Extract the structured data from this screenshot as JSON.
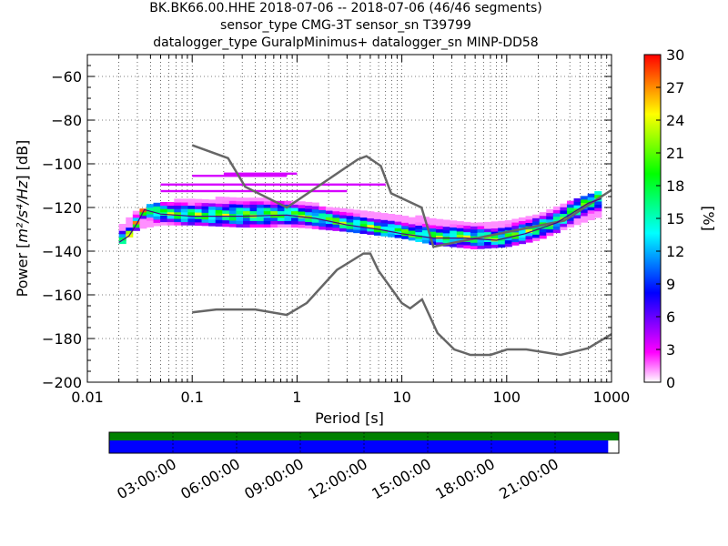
{
  "chart_data": [
    {
      "type": "heatmap",
      "title_lines": [
        "BK.BK66.00.HHE   2018-07-06 -- 2018-07-06  (46/46 segments)",
        "sensor_type CMG-3T sensor_sn T39799",
        "datalogger_type GuralpMinimus+ datalogger_sn MINP-DD58"
      ],
      "xlabel": "Period [s]",
      "ylabel_prefix": "Power [",
      "ylabel_unit": "m²/s⁴/Hz",
      "ylabel_suffix": "] [dB]",
      "xscale": "log",
      "xlim": [
        0.01,
        1000
      ],
      "ylim": [
        -200,
        -50
      ],
      "xtick_values": [
        0.01,
        0.1,
        1,
        10,
        100,
        1000
      ],
      "xtick_labels": [
        "0.01",
        "0.1",
        "1",
        "10",
        "100",
        "1000"
      ],
      "ytick_values": [
        -200,
        -180,
        -160,
        -140,
        -120,
        -100,
        -80,
        -60
      ],
      "ytick_labels": [
        "−200",
        "−180",
        "−160",
        "−140",
        "−120",
        "−100",
        "−80",
        "−60"
      ],
      "grid": true,
      "colorbar": {
        "label": "[%]",
        "range": [
          0,
          30
        ],
        "tick_values": [
          0,
          3,
          6,
          9,
          12,
          15,
          18,
          21,
          24,
          27,
          30
        ],
        "tick_labels": [
          "0",
          "3",
          "6",
          "9",
          "12",
          "15",
          "18",
          "21",
          "24",
          "27",
          "30"
        ],
        "colormap_stops": [
          "#ffffff",
          "#ff00ff",
          "#8000ff",
          "#0000ff",
          "#0080ff",
          "#00ffff",
          "#00ff80",
          "#00ff00",
          "#80ff00",
          "#ffff00",
          "#ff8000",
          "#ff0000"
        ]
      },
      "reference_curves": [
        {
          "name": "NHNM",
          "color": "#666666",
          "points": [
            [
              0.1,
              -91.5
            ],
            [
              0.22,
              -97.4
            ],
            [
              0.32,
              -110.5
            ],
            [
              0.8,
              -120
            ],
            [
              3.8,
              -98
            ],
            [
              4.6,
              -96.5
            ],
            [
              6.3,
              -101
            ],
            [
              7.9,
              -113.5
            ],
            [
              15.4,
              -120
            ],
            [
              20,
              -138
            ],
            [
              354.8,
              -126
            ],
            [
              1000,
              -112
            ]
          ]
        },
        {
          "name": "NLNM",
          "color": "#666666",
          "points": [
            [
              0.1,
              -168
            ],
            [
              0.17,
              -166.7
            ],
            [
              0.4,
              -166.7
            ],
            [
              0.8,
              -169.2
            ],
            [
              1.24,
              -163.7
            ],
            [
              2.4,
              -148.6
            ],
            [
              4.3,
              -141.1
            ],
            [
              5,
              -141.1
            ],
            [
              6,
              -149
            ],
            [
              10,
              -163.8
            ],
            [
              12,
              -166.2
            ],
            [
              15.6,
              -162.1
            ],
            [
              21.9,
              -177.5
            ],
            [
              31.6,
              -185
            ],
            [
              45,
              -187.5
            ],
            [
              70,
              -187.5
            ],
            [
              101,
              -185
            ],
            [
              154,
              -185
            ],
            [
              328,
              -187.5
            ],
            [
              600,
              -184.4
            ],
            [
              1000,
              -178
            ]
          ]
        }
      ],
      "mode_curve": {
        "name": "mode",
        "points": [
          [
            0.02,
            -136
          ],
          [
            0.025,
            -133
          ],
          [
            0.03,
            -127
          ],
          [
            0.035,
            -121
          ],
          [
            0.05,
            -123
          ],
          [
            0.1,
            -124
          ],
          [
            0.3,
            -124
          ],
          [
            0.8,
            -123.5
          ],
          [
            1.5,
            -125
          ],
          [
            3,
            -128
          ],
          [
            6,
            -130
          ],
          [
            10,
            -132
          ],
          [
            20,
            -134
          ],
          [
            40,
            -134
          ],
          [
            80,
            -135
          ],
          [
            150,
            -132
          ],
          [
            300,
            -127
          ],
          [
            600,
            -118
          ],
          [
            800,
            -116
          ]
        ]
      },
      "percentile_curves": [
        {
          "name": "upper",
          "points": [
            [
              0.02,
              -130
            ],
            [
              0.03,
              -122
            ],
            [
              0.05,
              -118
            ],
            [
              0.1,
              -117
            ],
            [
              0.3,
              -116
            ],
            [
              1,
              -118
            ],
            [
              3,
              -121
            ],
            [
              10,
              -124
            ],
            [
              20,
              -126
            ],
            [
              50,
              -128
            ],
            [
              100,
              -127
            ],
            [
              200,
              -124
            ],
            [
              400,
              -118
            ],
            [
              800,
              -112
            ]
          ]
        },
        {
          "name": "lower",
          "points": [
            [
              0.02,
              -138
            ],
            [
              0.03,
              -130
            ],
            [
              0.05,
              -128
            ],
            [
              0.1,
              -128
            ],
            [
              0.3,
              -129
            ],
            [
              1,
              -129
            ],
            [
              3,
              -131
            ],
            [
              10,
              -134
            ],
            [
              20,
              -137
            ],
            [
              50,
              -139
            ],
            [
              100,
              -138
            ],
            [
              200,
              -135
            ],
            [
              400,
              -129
            ],
            [
              800,
              -124
            ]
          ]
        }
      ],
      "outlier_segments": [
        {
          "x": [
            0.1,
            0.8
          ],
          "y": -106
        },
        {
          "x": [
            0.2,
            1.0
          ],
          "y": -105
        },
        {
          "x": [
            0.05,
            3
          ],
          "y": -113
        },
        {
          "x": [
            0.05,
            7
          ],
          "y": -110
        }
      ]
    },
    {
      "type": "timeline",
      "tick_labels": [
        "03:00:00",
        "06:00:00",
        "09:00:00",
        "12:00:00",
        "15:00:00",
        "18:00:00",
        "21:00:00"
      ],
      "range_hours": [
        0,
        24
      ],
      "tick_hours": [
        3,
        6,
        9,
        12,
        15,
        18,
        21
      ],
      "bars": [
        {
          "name": "data-availability",
          "color": "#008000",
          "start_hour": 0,
          "end_hour": 24
        },
        {
          "name": "psd-segments",
          "color": "#0000ff",
          "start_hour": 0,
          "end_hour": 23.5
        }
      ]
    }
  ]
}
